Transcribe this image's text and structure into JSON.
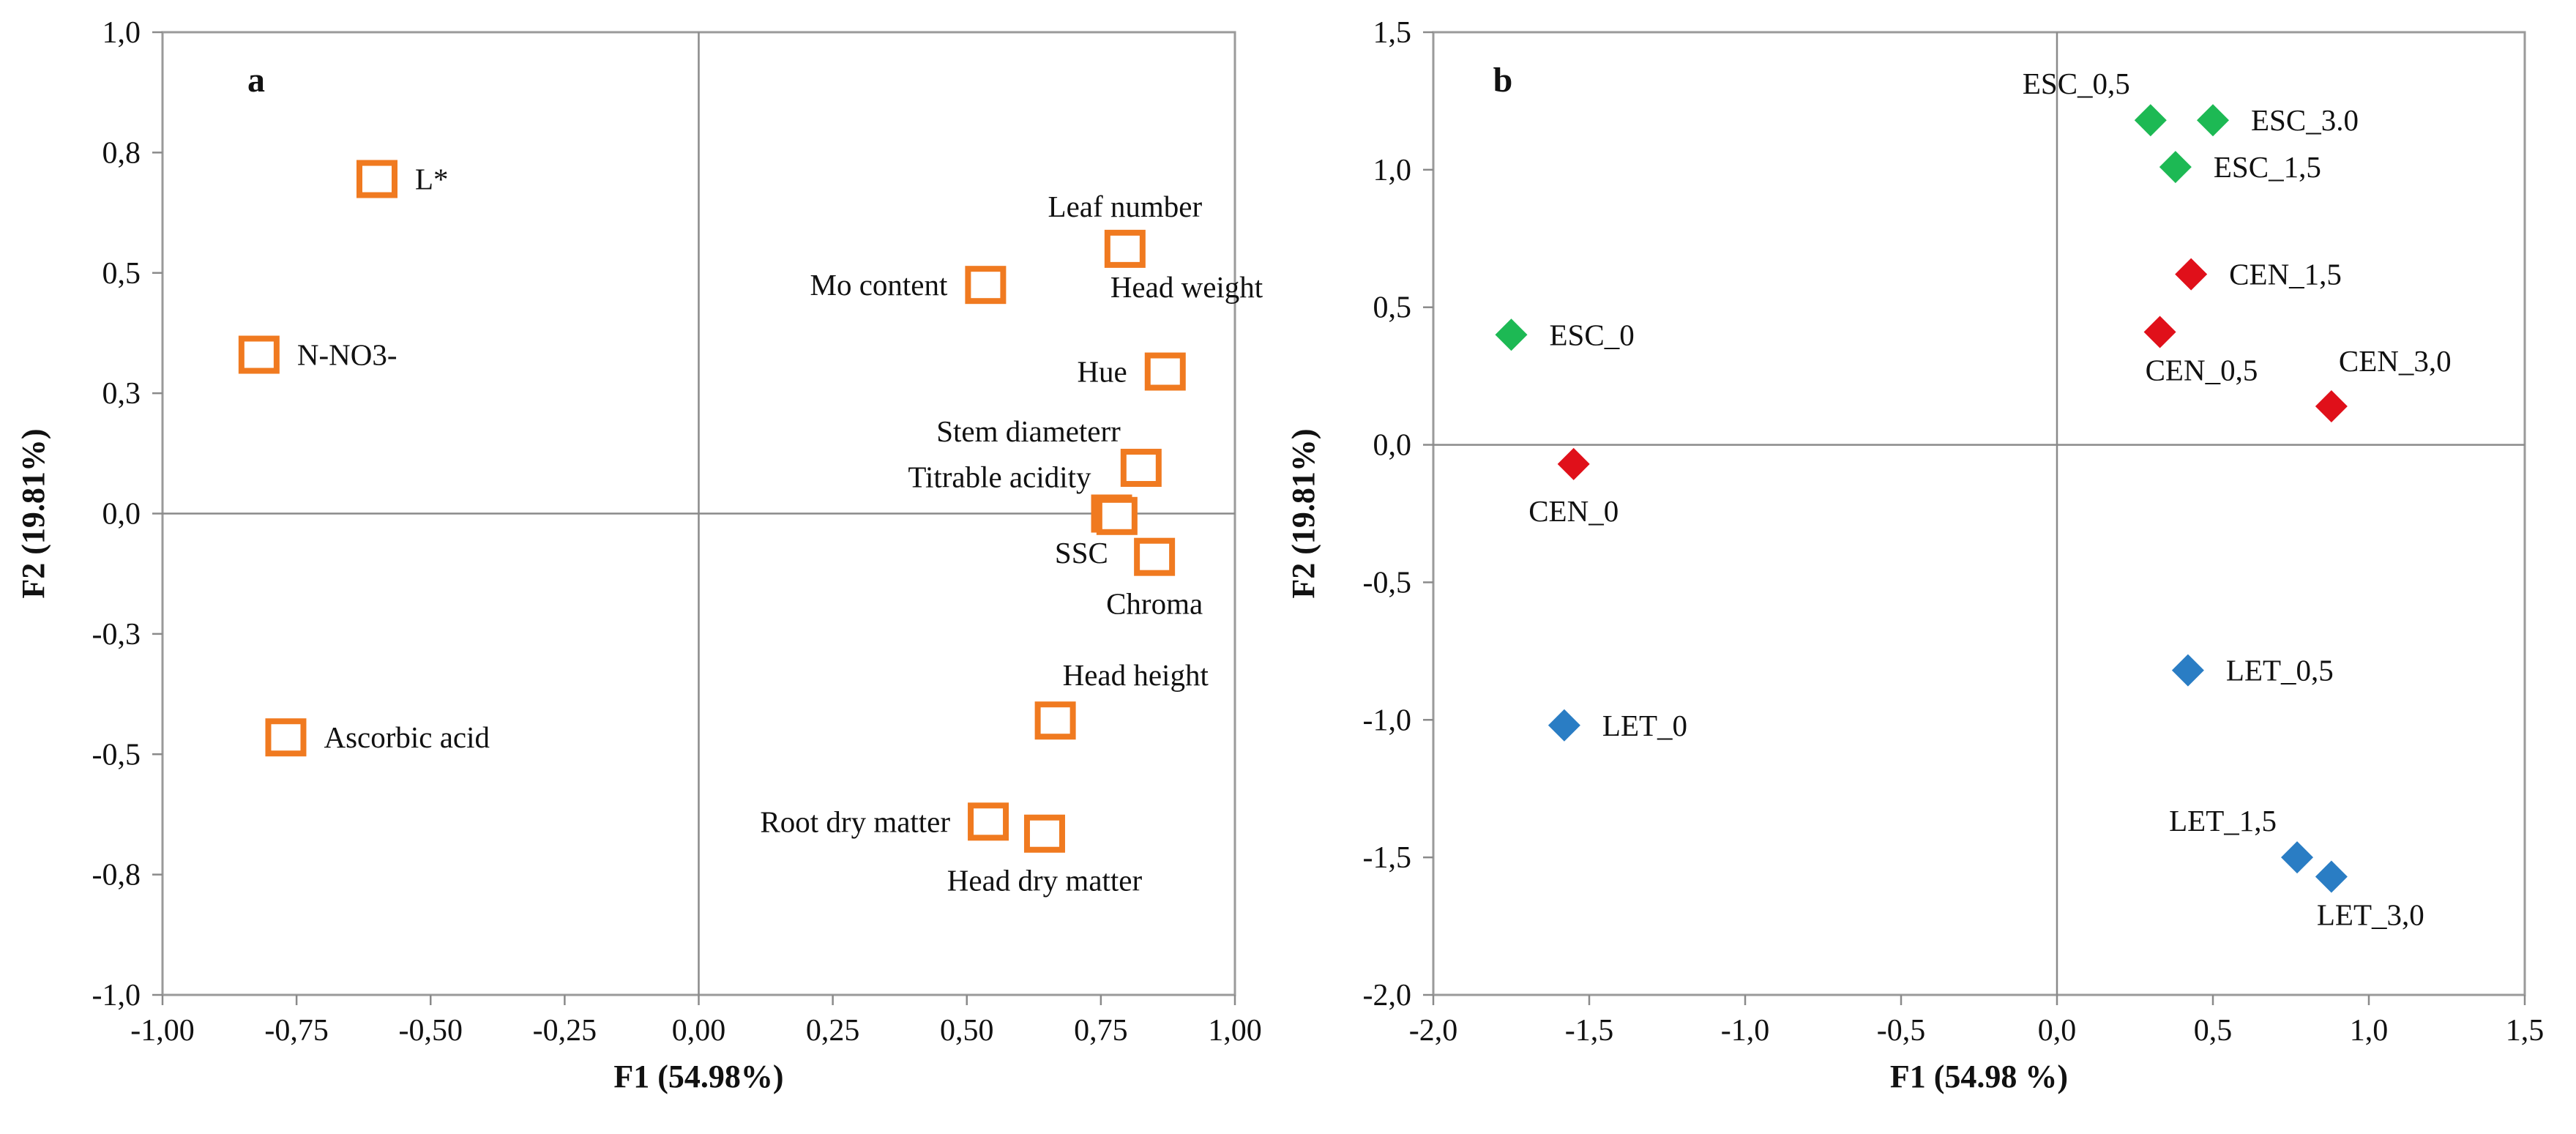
{
  "chart_data": [
    {
      "type": "scatter",
      "panel": "a",
      "xlabel": "F1 (54.98%)",
      "ylabel": "F2 (19.81%)",
      "xlim": [
        -1.0,
        1.0
      ],
      "ylim": [
        -1.0,
        1.0
      ],
      "xticks": [
        -1.0,
        -0.75,
        -0.5,
        -0.25,
        0.0,
        0.25,
        0.5,
        0.75,
        1.0
      ],
      "xtick_labels": [
        "-1,00",
        "-0,75",
        "-0,50",
        "-0,25",
        "0,00",
        "0,25",
        "0,50",
        "0,75",
        "1,00"
      ],
      "yticks": [
        -1.0,
        -0.75,
        -0.5,
        -0.25,
        0.0,
        0.25,
        0.5,
        0.75,
        1.0
      ],
      "ytick_labels": [
        "-1,0",
        "-0,8",
        "-0,5",
        "-0,3",
        "0,0",
        "0,3",
        "0,5",
        "0,8",
        "1,0"
      ],
      "marker": "open-square",
      "marker_color": "#f07a20",
      "points": [
        {
          "label": "L*",
          "x": -0.6,
          "y": 0.695,
          "label_pos": "right"
        },
        {
          "label": "N-NO3-",
          "x": -0.82,
          "y": 0.33,
          "label_pos": "right"
        },
        {
          "label": "Ascorbic acid",
          "x": -0.77,
          "y": -0.465,
          "label_pos": "right"
        },
        {
          "label": "Leaf number",
          "x": 0.795,
          "y": 0.55,
          "label_pos": "above"
        },
        {
          "label": "Head weight",
          "x": 0.795,
          "y": 0.55,
          "label_pos": "below-right"
        },
        {
          "label": "Mo content",
          "x": 0.535,
          "y": 0.475,
          "label_pos": "left"
        },
        {
          "label": "Hue",
          "x": 0.87,
          "y": 0.295,
          "label_pos": "left"
        },
        {
          "label": "Stem diameterr",
          "x": 0.825,
          "y": 0.095,
          "label_pos": "above-left"
        },
        {
          "label": "Titrable acidity",
          "x": 0.77,
          "y": 0.0,
          "label_pos": "above-left"
        },
        {
          "label": "SSC",
          "x": 0.78,
          "y": -0.005,
          "label_pos": "below-left"
        },
        {
          "label": "Chroma",
          "x": 0.85,
          "y": -0.09,
          "label_pos": "below"
        },
        {
          "label": "Head height",
          "x": 0.665,
          "y": -0.43,
          "label_pos": "above-right"
        },
        {
          "label": "Root dry matter",
          "x": 0.54,
          "y": -0.64,
          "label_pos": "left"
        },
        {
          "label": "Head dry matter",
          "x": 0.645,
          "y": -0.665,
          "label_pos": "below"
        }
      ]
    },
    {
      "type": "scatter",
      "panel": "b",
      "xlabel": "F1 (54.98 %)",
      "ylabel": "F2 (19.81%)",
      "xlim": [
        -2.0,
        1.5
      ],
      "ylim": [
        -2.0,
        1.5
      ],
      "xticks": [
        -2.0,
        -1.5,
        -1.0,
        -0.5,
        0.0,
        0.5,
        1.0,
        1.5
      ],
      "xtick_labels": [
        "-2,0",
        "-1,5",
        "-1,0",
        "-0,5",
        "0,0",
        "0,5",
        "1,0",
        "1,5"
      ],
      "yticks": [
        -2.0,
        -1.5,
        -1.0,
        -0.5,
        0.0,
        0.5,
        1.0,
        1.5
      ],
      "ytick_labels": [
        "-2,0",
        "-1,5",
        "-1,0",
        "-0,5",
        "0,0",
        "0,5",
        "1,0",
        "1,5"
      ],
      "marker": "diamond",
      "series": [
        {
          "name": "ESC",
          "color": "#1db954",
          "points": [
            {
              "label": "ESC_0",
              "x": -1.75,
              "y": 0.4,
              "label_pos": "right"
            },
            {
              "label": "ESC_0,5",
              "x": 0.3,
              "y": 1.18,
              "label_pos": "above-left"
            },
            {
              "label": "ESC_1,5",
              "x": 0.38,
              "y": 1.01,
              "label_pos": "right"
            },
            {
              "label": "ESC_3.0",
              "x": 0.5,
              "y": 1.18,
              "label_pos": "right"
            }
          ]
        },
        {
          "name": "CEN",
          "color": "#e0101a",
          "points": [
            {
              "label": "CEN_0",
              "x": -1.55,
              "y": -0.07,
              "label_pos": "below"
            },
            {
              "label": "CEN_0,5",
              "x": 0.33,
              "y": 0.41,
              "label_pos": "below-right"
            },
            {
              "label": "CEN_1,5",
              "x": 0.43,
              "y": 0.62,
              "label_pos": "right"
            },
            {
              "label": "CEN_3,0",
              "x": 0.88,
              "y": 0.14,
              "label_pos": "above-right"
            }
          ]
        },
        {
          "name": "LET",
          "color": "#2a7dc4",
          "points": [
            {
              "label": "LET_0",
              "x": -1.58,
              "y": -1.02,
              "label_pos": "right"
            },
            {
              "label": "LET_0,5",
              "x": 0.42,
              "y": -0.82,
              "label_pos": "right"
            },
            {
              "label": "LET_1,5",
              "x": 0.77,
              "y": -1.5,
              "label_pos": "above-left"
            },
            {
              "label": "LET_3,0",
              "x": 0.88,
              "y": -1.57,
              "label_pos": "below-right"
            }
          ]
        }
      ]
    }
  ]
}
